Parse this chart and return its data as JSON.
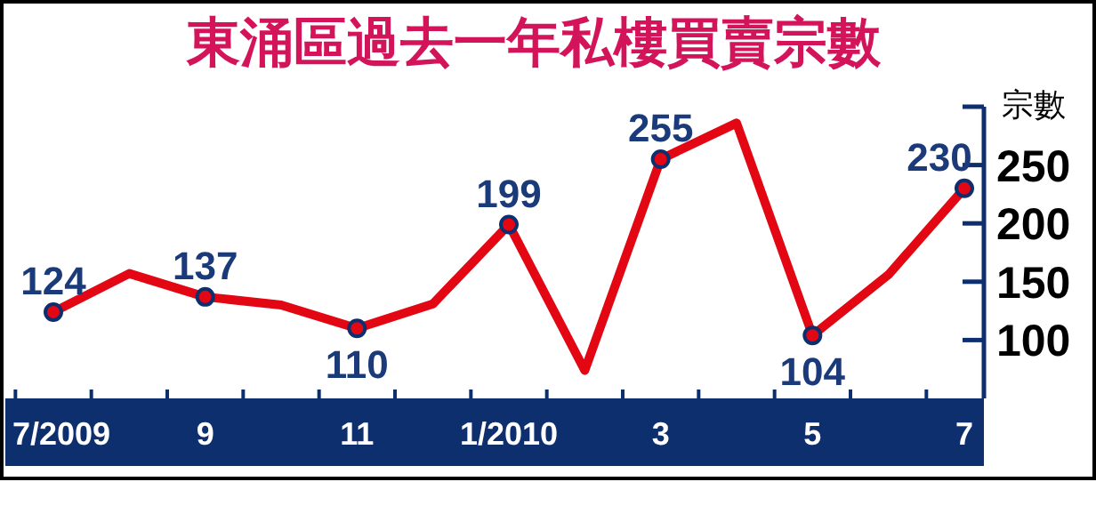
{
  "chart_data": {
    "type": "line",
    "title": "東涌區過去一年私樓買賣宗數",
    "ylabel": "宗數",
    "categories": [
      "7/2009",
      null,
      "9",
      null,
      "11",
      null,
      "1/2010",
      null,
      "3",
      null,
      "5",
      null,
      "7"
    ],
    "series": [
      {
        "color": "#e30613",
        "values": [
          124,
          157,
          137,
          130,
          110,
          131,
          199,
          74,
          255,
          286,
          104,
          156,
          230
        ],
        "value_labels": [
          "124",
          null,
          "137",
          null,
          "110",
          null,
          "199",
          null,
          "255",
          null,
          "104",
          null,
          "230"
        ]
      }
    ],
    "ylim": [
      50,
      300
    ],
    "yticks": [
      100,
      150,
      200,
      250,
      {
        "value": 300,
        "label": null
      }
    ],
    "marker": "circle"
  }
}
